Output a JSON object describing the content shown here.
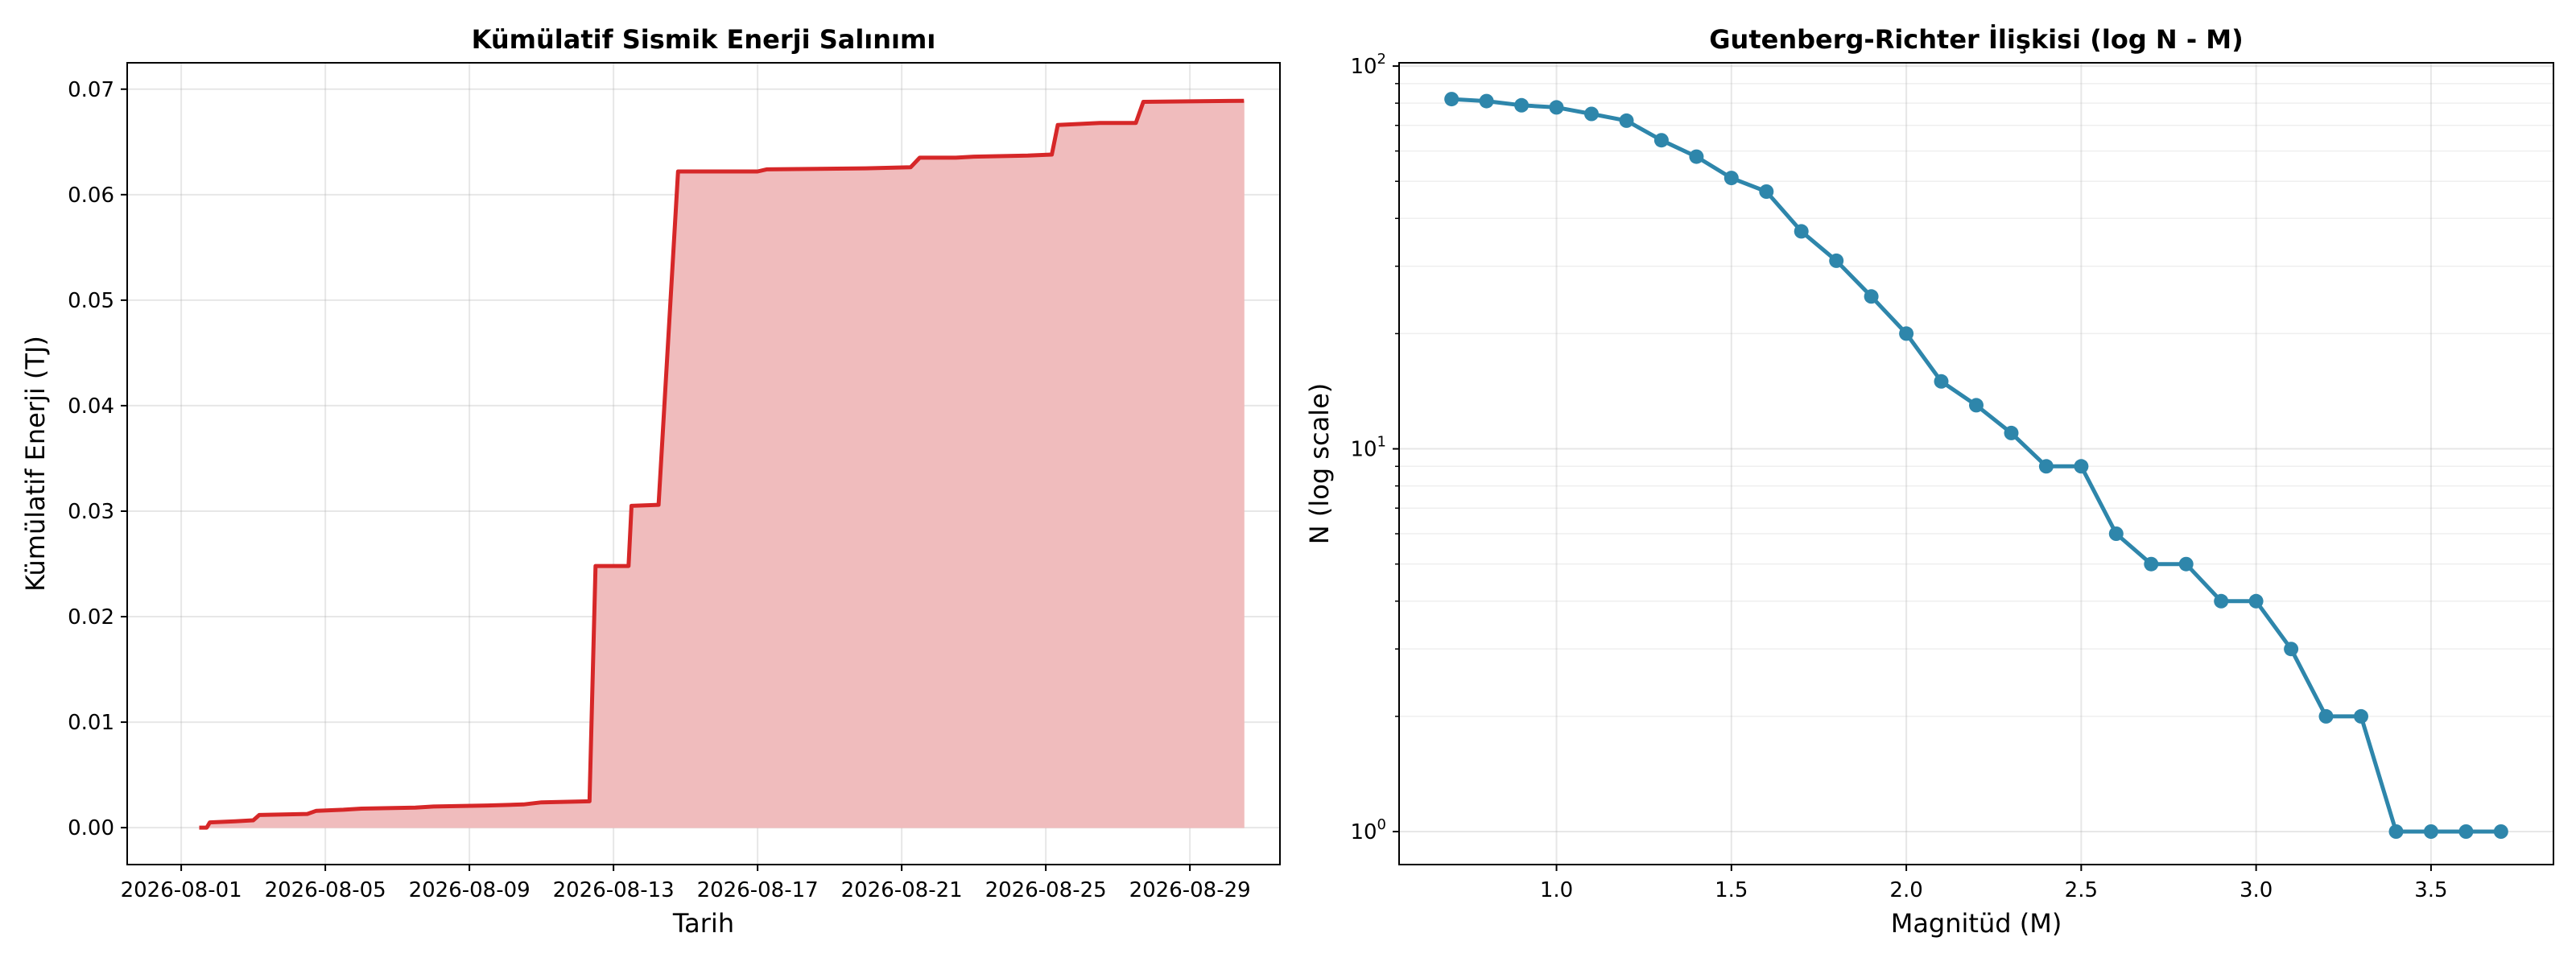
{
  "chart_data": [
    {
      "type": "area",
      "title": "Kümülatif Sismik Enerji Salınımı",
      "xlabel": "Tarih",
      "ylabel": "Kümülatif Enerji (TJ)",
      "x_ticks": [
        "2026-08-01",
        "2026-08-05",
        "2026-08-09",
        "2026-08-13",
        "2026-08-17",
        "2026-08-21",
        "2026-08-25",
        "2026-08-29"
      ],
      "y_ticks": [
        "0.00",
        "0.01",
        "0.02",
        "0.03",
        "0.04",
        "0.05",
        "0.06",
        "0.07"
      ],
      "xlim": [
        "2026-07-30T12:00",
        "2026-08-31T12:00"
      ],
      "ylim": [
        -0.0035,
        0.0725
      ],
      "grid": true,
      "line_color": "#d62728",
      "fill_color": "#f0bcbd",
      "points": [
        {
          "x": "2026-08-01T12:00",
          "y": 0.0
        },
        {
          "x": "2026-08-01T17:00",
          "y": 0.0
        },
        {
          "x": "2026-08-01T19:00",
          "y": 0.0005
        },
        {
          "x": "2026-08-02T12:00",
          "y": 0.0006
        },
        {
          "x": "2026-08-03T00:00",
          "y": 0.0007
        },
        {
          "x": "2026-08-03T04:00",
          "y": 0.0012
        },
        {
          "x": "2026-08-04T12:00",
          "y": 0.0013
        },
        {
          "x": "2026-08-04T18:00",
          "y": 0.0016
        },
        {
          "x": "2026-08-05T12:00",
          "y": 0.0017
        },
        {
          "x": "2026-08-06T00:00",
          "y": 0.0018
        },
        {
          "x": "2026-08-07T12:00",
          "y": 0.0019
        },
        {
          "x": "2026-08-08T00:00",
          "y": 0.002
        },
        {
          "x": "2026-08-09T12:00",
          "y": 0.0021
        },
        {
          "x": "2026-08-10T12:00",
          "y": 0.0022
        },
        {
          "x": "2026-08-11T00:00",
          "y": 0.0024
        },
        {
          "x": "2026-08-12T08:00",
          "y": 0.0025
        },
        {
          "x": "2026-08-12T12:00",
          "y": 0.0248
        },
        {
          "x": "2026-08-13T10:00",
          "y": 0.0248
        },
        {
          "x": "2026-08-13T12:00",
          "y": 0.0305
        },
        {
          "x": "2026-08-14T06:00",
          "y": 0.0306
        },
        {
          "x": "2026-08-14T19:00",
          "y": 0.0622
        },
        {
          "x": "2026-08-16T12:00",
          "y": 0.0622
        },
        {
          "x": "2026-08-17T00:00",
          "y": 0.0622
        },
        {
          "x": "2026-08-17T06:00",
          "y": 0.0624
        },
        {
          "x": "2026-08-20T00:00",
          "y": 0.0625
        },
        {
          "x": "2026-08-21T06:00",
          "y": 0.0626
        },
        {
          "x": "2026-08-21T12:00",
          "y": 0.0635
        },
        {
          "x": "2026-08-22T12:00",
          "y": 0.0635
        },
        {
          "x": "2026-08-23T00:00",
          "y": 0.0636
        },
        {
          "x": "2026-08-24T12:00",
          "y": 0.0637
        },
        {
          "x": "2026-08-25T04:00",
          "y": 0.0638
        },
        {
          "x": "2026-08-25T08:00",
          "y": 0.0666
        },
        {
          "x": "2026-08-26T12:00",
          "y": 0.0668
        },
        {
          "x": "2026-08-27T12:00",
          "y": 0.0668
        },
        {
          "x": "2026-08-27T17:00",
          "y": 0.0688
        },
        {
          "x": "2026-08-30T12:00",
          "y": 0.0689
        }
      ]
    },
    {
      "type": "line",
      "title": "Gutenberg-Richter İlişkisi (log N - M)",
      "xlabel": "Magnitüd (M)",
      "ylabel": "N (log scale)",
      "y_scale": "log",
      "x_ticks": [
        "1.0",
        "1.5",
        "2.0",
        "2.5",
        "3.0",
        "3.5"
      ],
      "y_ticks": [
        {
          "base": "10",
          "exp": "0",
          "value": 1
        },
        {
          "base": "10",
          "exp": "1",
          "value": 10
        },
        {
          "base": "10",
          "exp": "2",
          "value": 100
        }
      ],
      "xlim": [
        0.55,
        3.85
      ],
      "ylim": [
        0.82,
        102
      ],
      "grid": true,
      "line_color": "#2e86ab",
      "marker": "circle",
      "x": [
        0.7,
        0.8,
        0.9,
        1.0,
        1.1,
        1.2,
        1.3,
        1.4,
        1.5,
        1.6,
        1.7,
        1.8,
        1.9,
        2.0,
        2.1,
        2.2,
        2.3,
        2.4,
        2.5,
        2.6,
        2.7,
        2.8,
        2.9,
        3.0,
        3.1,
        3.2,
        3.3,
        3.4,
        3.5,
        3.6,
        3.7
      ],
      "y": [
        82,
        81,
        79,
        78,
        75,
        72,
        64,
        58,
        51,
        47,
        37,
        31,
        25,
        20,
        15,
        13,
        11,
        9,
        9,
        6,
        5,
        5,
        4,
        4,
        3,
        2,
        2,
        1,
        1,
        1,
        1
      ]
    }
  ]
}
